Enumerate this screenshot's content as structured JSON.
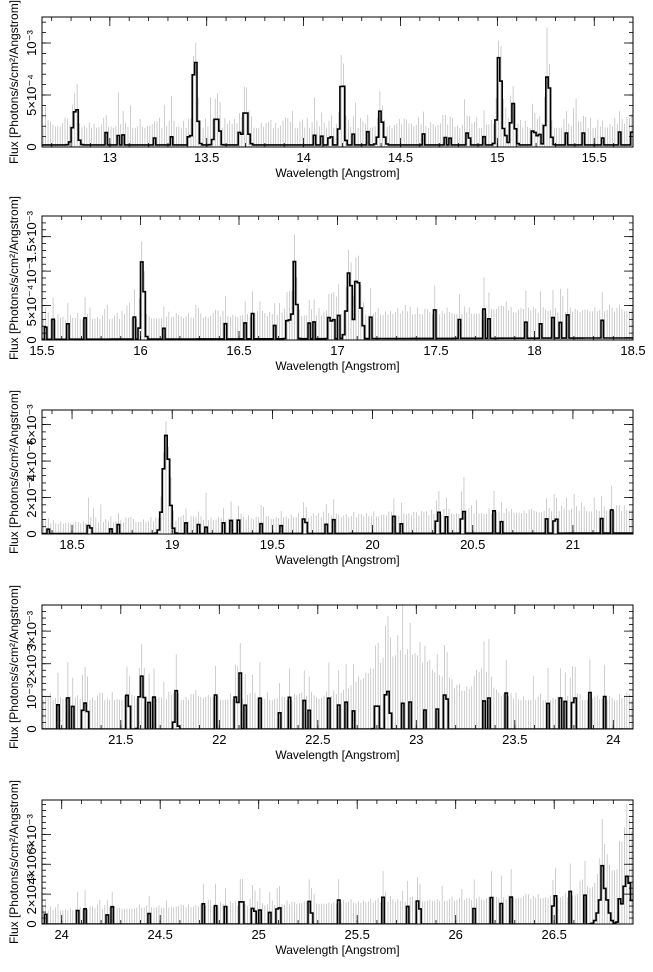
{
  "chart_data": [
    {
      "type": "line",
      "xlabel": "Wavelength [Angstrom]",
      "ylabel": "Flux [Photons/s/cm²/Angstrom]",
      "xlim": [
        12.65,
        15.7
      ],
      "ylim": [
        0,
        0.00125
      ],
      "xticks": [
        13,
        13.5,
        14,
        14.5,
        15,
        15.5
      ],
      "xtick_labels": [
        "13",
        "13.5",
        "14",
        "14.5",
        "15",
        "15.5"
      ],
      "yticks": [
        0,
        0.0005,
        0.001
      ],
      "ytick_labels": [
        "0",
        "5×10⁻⁴",
        "10⁻³"
      ],
      "features": [
        {
          "x": 12.82,
          "amp": 0.00032,
          "w": 0.012
        },
        {
          "x": 13.44,
          "amp": 0.00085,
          "w": 0.01
        },
        {
          "x": 13.55,
          "amp": 0.0003,
          "w": 0.01
        },
        {
          "x": 13.7,
          "amp": 0.00035,
          "w": 0.012
        },
        {
          "x": 14.2,
          "amp": 0.00068,
          "w": 0.008
        },
        {
          "x": 14.4,
          "amp": 0.00025,
          "w": 0.012
        },
        {
          "x": 15.01,
          "amp": 0.0009,
          "w": 0.01
        },
        {
          "x": 15.08,
          "amp": 0.0004,
          "w": 0.01
        },
        {
          "x": 15.26,
          "amp": 0.0007,
          "w": 0.01
        }
      ],
      "baseline": [
        2e-05,
        2e-05
      ],
      "floor_lines": [
        0.0001,
        0.0001
      ],
      "noise": 9e-05,
      "seed": 3
    },
    {
      "type": "line",
      "xlabel": "Wavelength [Angstrom]",
      "ylabel": "Flux [Photons/s/cm²/Angstrom]",
      "xlim": [
        15.5,
        18.5
      ],
      "ylim": [
        0,
        0.0018
      ],
      "xticks": [
        15.5,
        16,
        16.5,
        17,
        17.5,
        18,
        18.5
      ],
      "xtick_labels": [
        "15.5",
        "16",
        "16.5",
        "17",
        "17.5",
        "18",
        "18.5"
      ],
      "yticks": [
        0,
        0.0005,
        0.001,
        0.0015
      ],
      "ytick_labels": [
        "0",
        "5×10⁻⁴",
        "10⁻³",
        "1.5×10⁻³"
      ],
      "features": [
        {
          "x": 16.01,
          "amp": 0.00125,
          "w": 0.008
        },
        {
          "x": 16.78,
          "amp": 0.00095,
          "w": 0.008
        },
        {
          "x": 16.75,
          "amp": 0.00045,
          "w": 0.006
        },
        {
          "x": 17.06,
          "amp": 0.001,
          "w": 0.012
        },
        {
          "x": 17.1,
          "amp": 0.0011,
          "w": 0.008
        }
      ],
      "baseline": [
        1e-05,
        3e-05
      ],
      "floor_lines": [
        0.00022,
        0.00034
      ],
      "noise": 0.0001,
      "seed": 7
    },
    {
      "type": "line",
      "xlabel": "Wavelength [Angstrom]",
      "ylabel": "Flux [Photons/s/cm²/Angstrom]",
      "xlim": [
        18.35,
        21.3
      ],
      "ylim": [
        0,
        0.0068
      ],
      "xticks": [
        18.5,
        19,
        19.5,
        20,
        20.5,
        21
      ],
      "xtick_labels": [
        "18.5",
        "19",
        "19.5",
        "20",
        "20.5",
        "21"
      ],
      "yticks": [
        0,
        0.002,
        0.004,
        0.006
      ],
      "ytick_labels": [
        "0",
        "2×10⁻³",
        "4×10⁻³",
        "6×10⁻³"
      ],
      "features": [
        {
          "x": 18.97,
          "amp": 0.0054,
          "w": 0.015
        }
      ],
      "baseline": [
        2e-05,
        5e-05
      ],
      "floor_lines": [
        0.0003,
        0.0011
      ],
      "noise": 0.0003,
      "seed": 11
    },
    {
      "type": "line",
      "xlabel": "Wavelength [Angstrom]",
      "ylabel": "Flux [Photons/s/cm²/Angstrom]",
      "xlim": [
        21.1,
        24.1
      ],
      "ylim": [
        0,
        0.0038
      ],
      "xticks": [
        21.5,
        22,
        22.5,
        23,
        23.5,
        24
      ],
      "xtick_labels": [
        "21.5",
        "22",
        "22.5",
        "23",
        "23.5",
        "24"
      ],
      "yticks": [
        0,
        0.001,
        0.002,
        0.003
      ],
      "ytick_labels": [
        "0",
        "10⁻³",
        "2×10⁻³",
        "3×10⁻³"
      ],
      "features": [
        {
          "x": 21.6,
          "amp": 0.0017,
          "w": 0.006
        },
        {
          "x": 21.78,
          "amp": 0.0012,
          "w": 0.006
        },
        {
          "x": 22.1,
          "amp": 0.0014,
          "w": 0.006
        },
        {
          "x": 22.8,
          "amp": 0.0012,
          "w": 0.006
        },
        {
          "x": 22.86,
          "amp": 0.0014,
          "w": 0.006
        }
      ],
      "baseline": [
        0.0,
        0.0
      ],
      "floor_lines": [
        0.0008,
        0.0008
      ],
      "envelope_bumps": [
        {
          "x": 22.93,
          "amp": 0.0014,
          "w": 0.16
        },
        {
          "x": 23.34,
          "amp": 0.0009,
          "w": 0.04
        }
      ],
      "noise": 0.0002,
      "seed": 13
    },
    {
      "type": "line",
      "xlabel": "Wavelength [Angstrom]",
      "ylabel": "Flux [Photons/s/cm²/Angstrom]",
      "xlim": [
        23.9,
        26.9
      ],
      "ylim": [
        0,
        0.0083
      ],
      "xticks": [
        24,
        24.5,
        25,
        25.5,
        26,
        26.5
      ],
      "xtick_labels": [
        "24",
        "24.5",
        "25",
        "25.5",
        "26",
        "26.5"
      ],
      "yticks": [
        0,
        0.002,
        0.004,
        0.006
      ],
      "ytick_labels": [
        "0",
        "2×10⁻³",
        "4×10⁻³",
        "6×10⁻³"
      ],
      "features": [
        {
          "x": 26.75,
          "amp": 0.0025,
          "w": 0.02
        },
        {
          "x": 26.87,
          "amp": 0.0032,
          "w": 0.02
        }
      ],
      "baseline": [
        0.0,
        0.0
      ],
      "floor_lines": [
        0.0007,
        0.0018
      ],
      "envelope_rise": {
        "start": 26.55,
        "end": 26.9,
        "amp": 0.0026
      },
      "noise": 0.0003,
      "seed": 17
    }
  ]
}
